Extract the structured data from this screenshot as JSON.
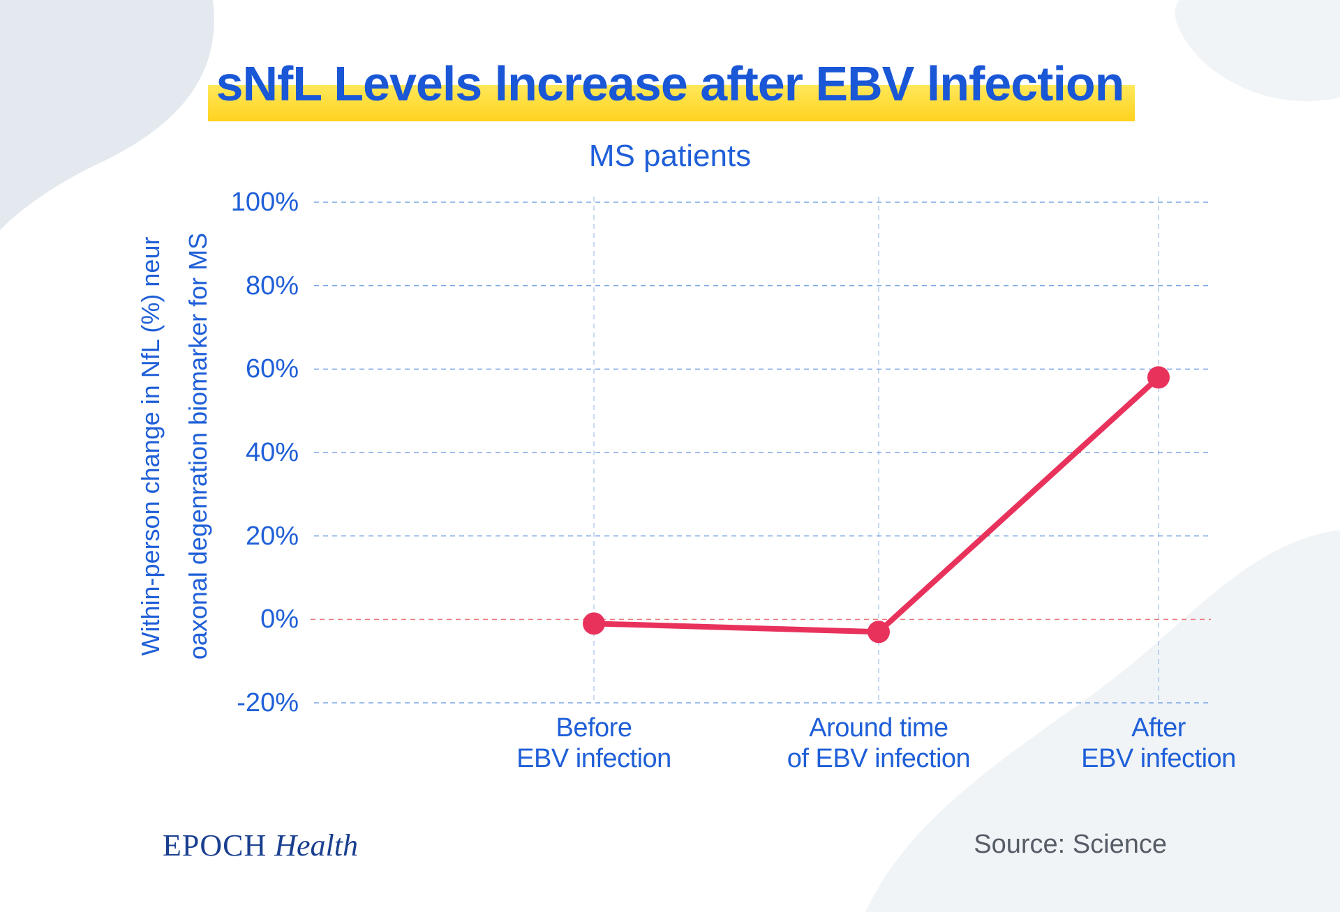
{
  "title": "sNfL Levels lncrease after EBV lnfection",
  "brand": {
    "main": "EPOCH",
    "sub": "Health"
  },
  "source": "Source: Science",
  "colors": {
    "text_blue": "#1f5fd8",
    "title_blue": "#1a57d6",
    "highlight": "#ffd21f",
    "line": "#e8325c",
    "grid": "#5b8fe0",
    "zero_line": "#e87a7a",
    "bg_shape": "#e3e9ee"
  },
  "chart_data": {
    "type": "line",
    "title": "MS patients",
    "ylabel_lines": [
      "Within-person change in NfL (%) neur",
      "oaxonal degenration biomarker for MS"
    ],
    "xlabel": "",
    "ylim": [
      -20,
      100
    ],
    "yticks": [
      100,
      80,
      60,
      40,
      20,
      0,
      -20
    ],
    "ytick_labels": [
      "100%",
      "80%",
      "60%",
      "40%",
      "20%",
      "0%",
      "-20%"
    ],
    "categories": [
      [
        "Before",
        "EBV infection"
      ],
      [
        "Around time",
        "of EBV infection"
      ],
      [
        "After",
        "EBV infection"
      ]
    ],
    "series": [
      {
        "name": "MS patients",
        "values": [
          -1,
          -3,
          58
        ]
      }
    ],
    "grid": true
  }
}
